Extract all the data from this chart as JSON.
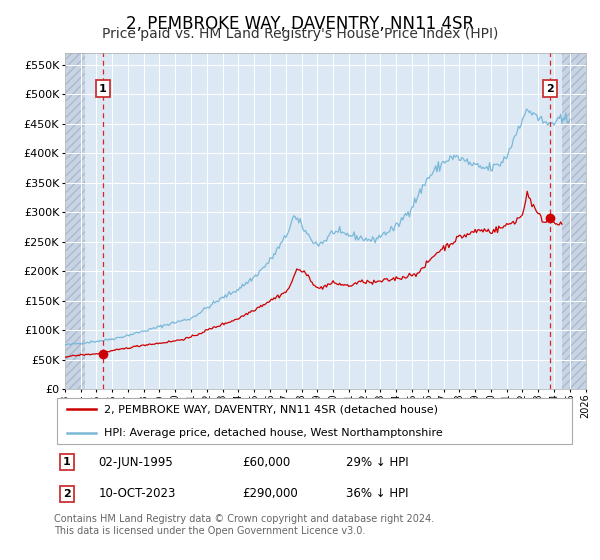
{
  "title": "2, PEMBROKE WAY, DAVENTRY, NN11 4SR",
  "subtitle": "Price paid vs. HM Land Registry's House Price Index (HPI)",
  "yticks": [
    0,
    50000,
    100000,
    150000,
    200000,
    250000,
    300000,
    350000,
    400000,
    450000,
    500000,
    550000
  ],
  "ytick_labels": [
    "£0",
    "£50K",
    "£100K",
    "£150K",
    "£200K",
    "£250K",
    "£300K",
    "£350K",
    "£400K",
    "£450K",
    "£500K",
    "£550K"
  ],
  "ylim": [
    0,
    570000
  ],
  "xlim": [
    1993,
    2026
  ],
  "sale1_x": 1995.42,
  "sale1_price": 60000,
  "sale1_label": "1",
  "sale1_text": "02-JUN-1995",
  "sale1_price_text": "£60,000",
  "sale1_hpi_text": "29% ↓ HPI",
  "sale2_x": 2023.77,
  "sale2_price": 290000,
  "sale2_label": "2",
  "sale2_text": "10-OCT-2023",
  "sale2_price_text": "£290,000",
  "sale2_hpi_text": "36% ↓ HPI",
  "legend_line1": "2, PEMBROKE WAY, DAVENTRY, NN11 4SR (detached house)",
  "legend_line2": "HPI: Average price, detached house, West Northamptonshire",
  "footer": "Contains HM Land Registry data © Crown copyright and database right 2024.\nThis data is licensed under the Open Government Licence v3.0.",
  "hpi_color": "#7ab8d8",
  "price_color": "#cc0000",
  "plot_bg": "#dce9f5",
  "hatch_bg": "#c8d4e4",
  "hatch_color": "#aabace",
  "grid_color": "#ffffff",
  "title_fontsize": 12,
  "subtitle_fontsize": 10,
  "hpi_anchors": [
    [
      1993.0,
      75000
    ],
    [
      1994.0,
      78000
    ],
    [
      1995.5,
      83000
    ],
    [
      1996.5,
      88000
    ],
    [
      1997.5,
      95000
    ],
    [
      1998.5,
      102000
    ],
    [
      1999.5,
      110000
    ],
    [
      2001.0,
      120000
    ],
    [
      2002.0,
      138000
    ],
    [
      2003.0,
      155000
    ],
    [
      2004.0,
      170000
    ],
    [
      2005.0,
      190000
    ],
    [
      2006.0,
      218000
    ],
    [
      2007.0,
      258000
    ],
    [
      2007.5,
      293000
    ],
    [
      2008.0,
      278000
    ],
    [
      2008.5,
      258000
    ],
    [
      2009.0,
      245000
    ],
    [
      2009.5,
      252000
    ],
    [
      2010.0,
      268000
    ],
    [
      2010.5,
      263000
    ],
    [
      2011.0,
      262000
    ],
    [
      2012.0,
      255000
    ],
    [
      2012.5,
      252000
    ],
    [
      2013.0,
      260000
    ],
    [
      2013.5,
      268000
    ],
    [
      2014.0,
      275000
    ],
    [
      2015.0,
      310000
    ],
    [
      2016.0,
      358000
    ],
    [
      2016.5,
      372000
    ],
    [
      2017.0,
      385000
    ],
    [
      2017.5,
      393000
    ],
    [
      2018.0,
      392000
    ],
    [
      2018.5,
      385000
    ],
    [
      2019.0,
      378000
    ],
    [
      2019.5,
      375000
    ],
    [
      2020.0,
      375000
    ],
    [
      2020.5,
      380000
    ],
    [
      2021.0,
      395000
    ],
    [
      2021.5,
      428000
    ],
    [
      2022.0,
      462000
    ],
    [
      2022.5,
      472000
    ],
    [
      2022.8,
      468000
    ],
    [
      2023.0,
      460000
    ],
    [
      2023.3,
      452000
    ],
    [
      2023.5,
      450000
    ],
    [
      2023.8,
      451000
    ],
    [
      2024.0,
      452000
    ],
    [
      2024.5,
      455000
    ],
    [
      2025.0,
      458000
    ]
  ],
  "price_anchors": [
    [
      1993.0,
      55000
    ],
    [
      1994.0,
      58000
    ],
    [
      1995.0,
      60000
    ],
    [
      1995.5,
      62000
    ],
    [
      1996.0,
      65000
    ],
    [
      1997.0,
      70000
    ],
    [
      1998.0,
      75000
    ],
    [
      1999.0,
      78000
    ],
    [
      2000.0,
      82000
    ],
    [
      2001.0,
      88000
    ],
    [
      2002.0,
      100000
    ],
    [
      2003.0,
      110000
    ],
    [
      2004.0,
      120000
    ],
    [
      2005.0,
      135000
    ],
    [
      2006.0,
      150000
    ],
    [
      2007.0,
      165000
    ],
    [
      2007.3,
      175000
    ],
    [
      2007.7,
      205000
    ],
    [
      2008.0,
      200000
    ],
    [
      2008.5,
      190000
    ],
    [
      2009.0,
      170000
    ],
    [
      2009.5,
      175000
    ],
    [
      2010.0,
      180000
    ],
    [
      2010.5,
      178000
    ],
    [
      2011.0,
      175000
    ],
    [
      2011.5,
      180000
    ],
    [
      2012.0,
      183000
    ],
    [
      2012.5,
      180000
    ],
    [
      2013.0,
      183000
    ],
    [
      2013.5,
      185000
    ],
    [
      2014.0,
      188000
    ],
    [
      2014.5,
      190000
    ],
    [
      2015.0,
      195000
    ],
    [
      2015.5,
      198000
    ],
    [
      2016.0,
      215000
    ],
    [
      2016.5,
      230000
    ],
    [
      2017.0,
      240000
    ],
    [
      2017.5,
      248000
    ],
    [
      2018.0,
      258000
    ],
    [
      2018.5,
      262000
    ],
    [
      2019.0,
      268000
    ],
    [
      2019.5,
      270000
    ],
    [
      2020.0,
      268000
    ],
    [
      2020.5,
      272000
    ],
    [
      2021.0,
      278000
    ],
    [
      2021.5,
      285000
    ],
    [
      2022.0,
      295000
    ],
    [
      2022.3,
      335000
    ],
    [
      2022.6,
      315000
    ],
    [
      2023.0,
      295000
    ],
    [
      2023.5,
      283000
    ],
    [
      2023.77,
      290000
    ],
    [
      2024.0,
      285000
    ],
    [
      2024.5,
      280000
    ]
  ]
}
